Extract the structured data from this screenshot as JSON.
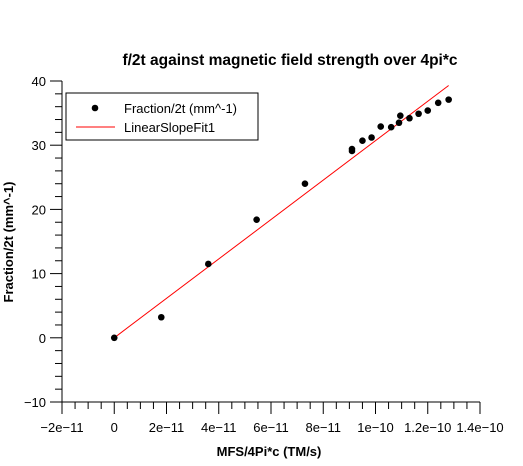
{
  "chart_data": {
    "type": "scatter",
    "title": "f/2t against magnetic field strength over 4pi*c",
    "xlabel": "MFS/4Pi*c (TM/s)",
    "ylabel": "Fraction/2t (mm^-1)",
    "xlim": [
      -2e-11,
      1.4e-10
    ],
    "ylim": [
      -10,
      40
    ],
    "x_ticks": [
      -2e-11,
      0,
      2e-11,
      4e-11,
      6e-11,
      8e-11,
      1e-10,
      1.2e-10,
      1.4e-10
    ],
    "x_tick_labels": [
      "−2e−11",
      "0",
      "2e−11",
      "4e−11",
      "6e−11",
      "8e−11",
      "1e−10",
      "1.2e−10",
      "1.4e−10"
    ],
    "y_ticks": [
      -10,
      0,
      10,
      20,
      30,
      40
    ],
    "y_tick_labels": [
      "−10",
      "0",
      "10",
      "20",
      "30",
      "40"
    ],
    "grid": false,
    "legend_position": "top-left",
    "series": [
      {
        "name": "Fraction/2t (mm^-1)",
        "kind": "scatter",
        "color": "#000000",
        "points": [
          [
            0,
            0
          ],
          [
            1.8e-11,
            3.2
          ],
          [
            3.6e-11,
            11.5
          ],
          [
            5.45e-11,
            18.4
          ],
          [
            7.3e-11,
            24
          ],
          [
            9.1e-11,
            29.1
          ],
          [
            9.1e-11,
            29.4
          ],
          [
            9.5e-11,
            30.7
          ],
          [
            9.85e-11,
            31.2
          ],
          [
            1.02e-10,
            32.9
          ],
          [
            1.06e-10,
            32.8
          ],
          [
            1.09e-10,
            33.5
          ],
          [
            1.095e-10,
            34.6
          ],
          [
            1.13e-10,
            34.2
          ],
          [
            1.165e-10,
            34.9
          ],
          [
            1.2e-10,
            35.4
          ],
          [
            1.24e-10,
            36.6
          ],
          [
            1.28e-10,
            37.1
          ]
        ]
      },
      {
        "name": "LinearSlopeFit1",
        "kind": "line",
        "color": "#ff0000",
        "x": [
          0,
          1.28e-10
        ],
        "y": [
          0,
          39.3
        ]
      }
    ]
  }
}
